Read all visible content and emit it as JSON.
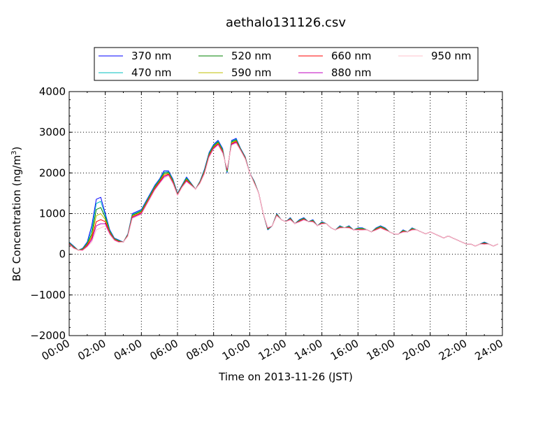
{
  "chart_data": {
    "type": "line",
    "title": "aethalo131126.csv",
    "xlabel": "Time on 2013-11-26 (JST)",
    "ylabel_main": "BC Concentration (ng/m",
    "ylabel_sup": "3",
    "ylabel_tail": ")",
    "xlim": [
      0,
      24
    ],
    "ylim": [
      -2000,
      4000
    ],
    "x_ticks": [
      0,
      2,
      4,
      6,
      8,
      10,
      12,
      14,
      16,
      18,
      20,
      22,
      24
    ],
    "x_tick_labels": [
      "00:00",
      "02:00",
      "04:00",
      "06:00",
      "08:00",
      "10:00",
      "12:00",
      "14:00",
      "16:00",
      "18:00",
      "20:00",
      "22:00",
      "24:00"
    ],
    "y_ticks": [
      -2000,
      -1000,
      0,
      1000,
      2000,
      3000,
      4000
    ],
    "y_tick_labels": [
      "−2000",
      "−1000",
      "0",
      "1000",
      "2000",
      "3000",
      "4000"
    ],
    "grid": true,
    "legend_position": "top-center",
    "legend_ncol": 4,
    "x": [
      0,
      0.25,
      0.5,
      0.75,
      1,
      1.25,
      1.5,
      1.75,
      2,
      2.25,
      2.5,
      2.75,
      3,
      3.25,
      3.5,
      3.75,
      4,
      4.25,
      4.5,
      4.75,
      5,
      5.25,
      5.5,
      5.75,
      6,
      6.25,
      6.5,
      6.75,
      7,
      7.25,
      7.5,
      7.75,
      8,
      8.25,
      8.5,
      8.75,
      9,
      9.25,
      9.5,
      9.75,
      10,
      10.25,
      10.5,
      10.75,
      11,
      11.25,
      11.5,
      11.75,
      12,
      12.25,
      12.5,
      12.75,
      13,
      13.25,
      13.5,
      13.75,
      14,
      14.25,
      14.5,
      14.75,
      15,
      15.25,
      15.5,
      15.75,
      16,
      16.25,
      16.5,
      16.75,
      17,
      17.25,
      17.5,
      17.75,
      18,
      18.25,
      18.5,
      18.75,
      19,
      19.25,
      19.5,
      19.75,
      20,
      20.25,
      20.5,
      20.75,
      21,
      21.25,
      21.5,
      21.75,
      22,
      22.25,
      22.5,
      22.75,
      23,
      23.25,
      23.5,
      23.75
    ],
    "series": [
      {
        "name": "370 nm",
        "color": "#0000ff",
        "values": [
          300,
          200,
          100,
          150,
          300,
          700,
          1350,
          1400,
          1000,
          600,
          400,
          350,
          300,
          500,
          1000,
          1050,
          1100,
          1300,
          1500,
          1700,
          1850,
          2050,
          2050,
          1850,
          1500,
          1700,
          1900,
          1750,
          1600,
          1800,
          2100,
          2500,
          2700,
          2800,
          2600,
          2000,
          2800,
          2850,
          2600,
          2400,
          2000,
          1800,
          1500,
          1000,
          600,
          700,
          1000,
          850,
          800,
          900,
          750,
          850,
          900,
          800,
          850,
          700,
          800,
          750,
          650,
          600,
          700,
          650,
          700,
          600,
          650,
          650,
          600,
          550,
          650,
          700,
          650,
          550,
          500,
          500,
          600,
          550,
          650,
          600,
          550,
          500,
          550,
          500,
          450,
          400,
          450,
          400,
          350,
          300,
          250,
          250,
          200,
          250,
          300,
          250,
          200,
          250
        ]
      },
      {
        "name": "470 nm",
        "color": "#00bfbf",
        "values": [
          290,
          190,
          100,
          140,
          280,
          600,
          1250,
          1300,
          950,
          580,
          390,
          340,
          300,
          490,
          980,
          1030,
          1080,
          1280,
          1480,
          1680,
          1830,
          2020,
          2030,
          1830,
          1490,
          1690,
          1880,
          1740,
          1600,
          1790,
          2080,
          2480,
          2680,
          2780,
          2580,
          2020,
          2780,
          2830,
          2590,
          2390,
          2000,
          1790,
          1500,
          1000,
          610,
          700,
          990,
          850,
          800,
          890,
          750,
          840,
          890,
          800,
          840,
          700,
          790,
          750,
          650,
          600,
          690,
          650,
          690,
          600,
          640,
          640,
          600,
          550,
          640,
          690,
          640,
          550,
          500,
          500,
          590,
          550,
          640,
          600,
          550,
          500,
          550,
          500,
          450,
          400,
          450,
          400,
          350,
          300,
          250,
          250,
          200,
          250,
          290,
          250,
          200,
          250
        ]
      },
      {
        "name": "520 nm",
        "color": "#008000",
        "values": [
          280,
          180,
          100,
          130,
          260,
          500,
          1100,
          1150,
          900,
          560,
          380,
          330,
          300,
          480,
          960,
          1010,
          1060,
          1260,
          1460,
          1660,
          1810,
          1990,
          2010,
          1810,
          1480,
          1680,
          1860,
          1730,
          1600,
          1780,
          2060,
          2460,
          2660,
          2760,
          2560,
          2040,
          2760,
          2810,
          2580,
          2380,
          2000,
          1780,
          1500,
          1000,
          620,
          700,
          980,
          850,
          800,
          880,
          750,
          830,
          880,
          800,
          830,
          700,
          780,
          750,
          650,
          600,
          680,
          650,
          680,
          600,
          630,
          630,
          600,
          550,
          630,
          680,
          630,
          550,
          500,
          500,
          580,
          550,
          630,
          600,
          550,
          500,
          550,
          500,
          450,
          400,
          450,
          400,
          350,
          300,
          250,
          250,
          200,
          250,
          280,
          250,
          200,
          250
        ]
      },
      {
        "name": "590 nm",
        "color": "#bfbf00",
        "values": [
          270,
          170,
          100,
          120,
          240,
          450,
          950,
          1000,
          850,
          540,
          370,
          320,
          300,
          470,
          940,
          990,
          1040,
          1240,
          1440,
          1640,
          1790,
          1960,
          1990,
          1790,
          1470,
          1670,
          1840,
          1720,
          1600,
          1770,
          2040,
          2440,
          2640,
          2740,
          2540,
          2060,
          2740,
          2790,
          2570,
          2370,
          2000,
          1770,
          1500,
          1000,
          630,
          700,
          970,
          850,
          800,
          870,
          750,
          820,
          870,
          800,
          820,
          700,
          770,
          750,
          650,
          600,
          670,
          650,
          670,
          600,
          620,
          620,
          600,
          550,
          620,
          670,
          620,
          550,
          500,
          500,
          570,
          550,
          620,
          600,
          550,
          500,
          550,
          500,
          450,
          400,
          450,
          400,
          350,
          300,
          250,
          250,
          200,
          250,
          270,
          250,
          200,
          250
        ]
      },
      {
        "name": "660 nm",
        "color": "#ff0000",
        "values": [
          260,
          160,
          100,
          110,
          220,
          400,
          800,
          850,
          800,
          520,
          360,
          310,
          300,
          460,
          920,
          970,
          1020,
          1220,
          1420,
          1620,
          1770,
          1930,
          1970,
          1770,
          1460,
          1660,
          1820,
          1710,
          1600,
          1760,
          2020,
          2420,
          2620,
          2720,
          2520,
          2080,
          2720,
          2770,
          2560,
          2360,
          2000,
          1760,
          1500,
          1000,
          640,
          700,
          960,
          850,
          800,
          860,
          750,
          810,
          860,
          800,
          810,
          700,
          760,
          750,
          650,
          600,
          660,
          650,
          660,
          600,
          610,
          610,
          600,
          550,
          610,
          660,
          610,
          550,
          500,
          500,
          560,
          550,
          610,
          600,
          550,
          500,
          550,
          500,
          450,
          400,
          450,
          400,
          350,
          300,
          250,
          250,
          200,
          250,
          260,
          250,
          200,
          250
        ]
      },
      {
        "name": "880 nm",
        "color": "#bf00bf",
        "values": [
          250,
          150,
          100,
          100,
          200,
          350,
          700,
          750,
          750,
          500,
          350,
          300,
          300,
          450,
          900,
          950,
          1000,
          1200,
          1400,
          1600,
          1750,
          1900,
          1950,
          1750,
          1450,
          1650,
          1800,
          1700,
          1600,
          1750,
          2000,
          2400,
          2600,
          2700,
          2500,
          2100,
          2700,
          2750,
          2550,
          2350,
          2000,
          1750,
          1500,
          1000,
          650,
          700,
          950,
          850,
          800,
          850,
          750,
          800,
          850,
          800,
          800,
          700,
          750,
          750,
          650,
          600,
          650,
          650,
          650,
          600,
          600,
          600,
          600,
          550,
          600,
          650,
          600,
          550,
          500,
          500,
          550,
          550,
          600,
          600,
          550,
          500,
          550,
          500,
          450,
          400,
          450,
          400,
          350,
          300,
          250,
          250,
          200,
          250,
          250,
          250,
          200,
          250
        ]
      },
      {
        "name": "950 nm",
        "color": "#ffc0cb",
        "values": [
          240,
          140,
          100,
          90,
          180,
          300,
          600,
          650,
          700,
          480,
          340,
          290,
          300,
          440,
          880,
          930,
          980,
          1180,
          1380,
          1580,
          1730,
          1870,
          1930,
          1730,
          1440,
          1640,
          1780,
          1690,
          1600,
          1740,
          1980,
          2380,
          2580,
          2680,
          2480,
          2120,
          2680,
          2730,
          2540,
          2340,
          2000,
          1740,
          1500,
          1000,
          660,
          700,
          940,
          850,
          800,
          840,
          750,
          790,
          840,
          800,
          790,
          700,
          740,
          750,
          650,
          600,
          640,
          650,
          640,
          600,
          590,
          590,
          600,
          550,
          590,
          640,
          590,
          550,
          500,
          500,
          540,
          550,
          590,
          600,
          550,
          500,
          550,
          500,
          450,
          400,
          450,
          400,
          350,
          300,
          250,
          250,
          200,
          250,
          240,
          250,
          200,
          250
        ]
      }
    ]
  }
}
